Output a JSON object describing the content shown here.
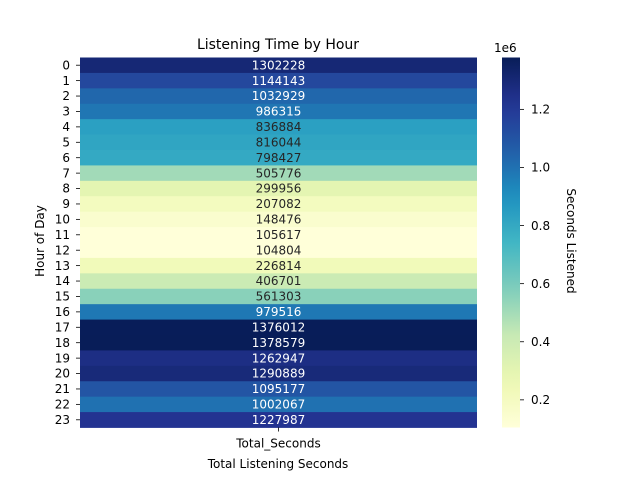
{
  "chart_data": {
    "type": "heatmap",
    "title": "Listening Time by Hour",
    "xlabel": "Total Listening Seconds",
    "ylabel": "Hour of Day",
    "x_categories": [
      "Total_Seconds"
    ],
    "y_categories": [
      "0",
      "1",
      "2",
      "3",
      "4",
      "5",
      "6",
      "7",
      "8",
      "9",
      "10",
      "11",
      "12",
      "13",
      "14",
      "15",
      "16",
      "17",
      "18",
      "19",
      "20",
      "21",
      "22",
      "23"
    ],
    "values": [
      1302228,
      1144143,
      1032929,
      986315,
      836884,
      816044,
      798427,
      505776,
      299956,
      207082,
      148476,
      105617,
      104804,
      226814,
      406701,
      561303,
      979516,
      1376012,
      1378579,
      1262947,
      1290889,
      1095177,
      1002067,
      1227987
    ],
    "colormap": "YlGnBu",
    "vmin": 104804,
    "vmax": 1378579,
    "colorbar": {
      "label": "Seconds Listened",
      "offset_label": "1e6",
      "ticks": [
        0.2,
        0.4,
        0.6,
        0.8,
        1.0,
        1.2
      ],
      "tick_labels": [
        "0.2",
        "0.4",
        "0.6",
        "0.8",
        "1.0",
        "1.2"
      ],
      "scale": 1000000
    }
  }
}
